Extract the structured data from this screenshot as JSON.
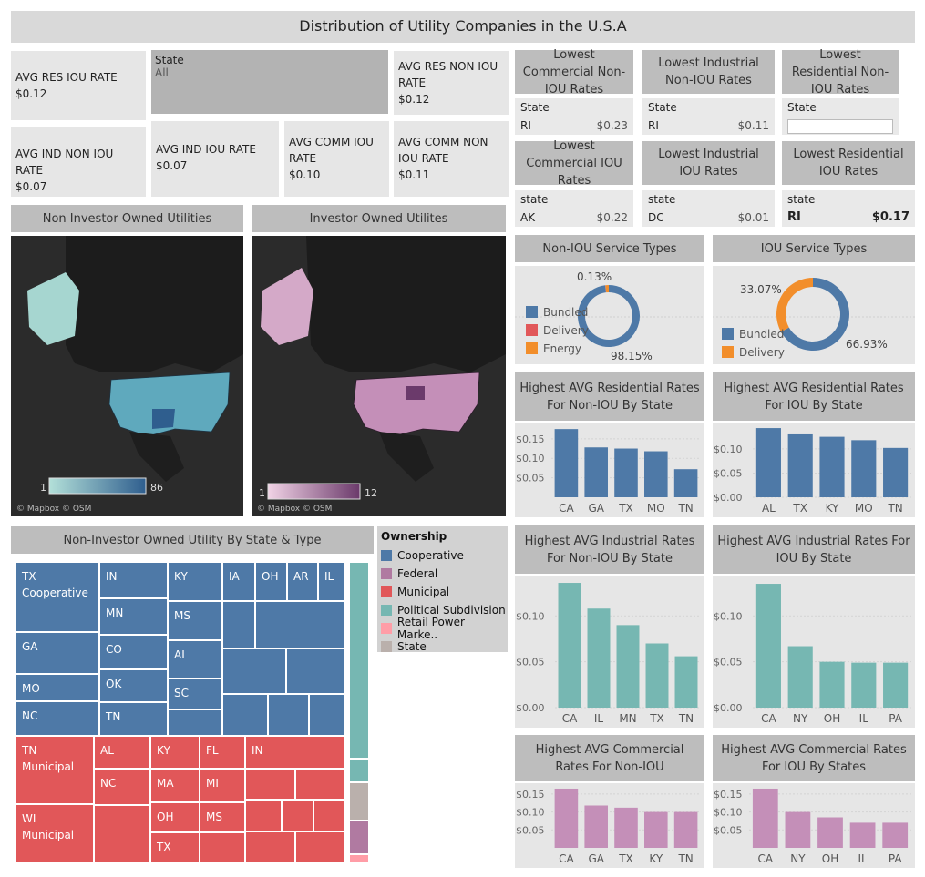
{
  "title": "Distribution of Utility Companies in the U.S.A",
  "kpis": {
    "res_iou": {
      "label": "AVG RES IOU RATE",
      "value": "$0.12"
    },
    "ind_non_iou": {
      "label": "AVG IND NON IOU RATE",
      "value": "$0.07"
    },
    "ind_iou": {
      "label": "AVG IND IOU RATE",
      "value": "$0.07"
    },
    "comm_iou": {
      "label": "AVG COMM IOU RATE",
      "value": "$0.10"
    },
    "res_non_iou": {
      "label": "AVG RES NON IOU RATE",
      "value": "$0.12"
    },
    "comm_non_iou": {
      "label": "AVG COMM NON IOU RATE",
      "value": "$0.11"
    }
  },
  "state_filter": {
    "label": "State",
    "value": "All"
  },
  "lowest": {
    "comm_non_iou": {
      "title": "Lowest Commercial Non-IOU Rates",
      "head": "State",
      "state": "RI",
      "value": "$0.23"
    },
    "ind_non_iou": {
      "title": "Lowest Industrial Non-IOU Rates",
      "head": "State",
      "state": "RI",
      "value": "$0.11"
    },
    "res_non_iou": {
      "title": "Lowest Residential Non-IOU Rates",
      "head": "State"
    },
    "comm_iou": {
      "title": "Lowest Commercial IOU Rates",
      "head": "state",
      "state": "AK",
      "value": "$0.22"
    },
    "ind_iou": {
      "title": "Lowest Industrial IOU Rates",
      "head": "state",
      "state": "DC",
      "value": "$0.01"
    },
    "res_iou": {
      "title": "Lowest Residential IOU Rates",
      "head": "state",
      "state": "RI",
      "value": "$0.17"
    }
  },
  "maps": {
    "non_iou": {
      "title": "Non Investor Owned Utilities",
      "min": "1",
      "max": "86",
      "credit": "© Mapbox © OSM",
      "color_low": "#b3e0d9",
      "color_high": "#2f5e8e"
    },
    "iou": {
      "title": "Investor Owned Utilites",
      "min": "1",
      "max": "12",
      "credit": "© Mapbox © OSM",
      "color_low": "#f1d3e6",
      "color_high": "#6b3a6b"
    }
  },
  "treemap": {
    "title": "Non-Investor Owned Utility By State & Type",
    "labels": {
      "tx_coop": "TX\nCooperative",
      "in_coop": "IN",
      "ky_coop": "KY",
      "ia": "IA",
      "oh_coop": "OH",
      "ar": "AR",
      "il": "IL",
      "mn": "MN",
      "ms_coop": "MS",
      "ga": "GA",
      "co": "CO",
      "al_coop": "AL",
      "mo": "MO",
      "ok": "OK",
      "sc": "SC",
      "nc_coop": "NC",
      "tn_coop": "TN",
      "tn_muni": "TN\nMunicipal",
      "al_muni": "AL",
      "ky_muni": "KY",
      "fl": "FL",
      "in_muni": "IN",
      "nc_muni": "NC",
      "ma": "MA",
      "mi": "MI",
      "oh_muni": "OH",
      "ms_muni": "MS",
      "wi_muni": "WI\nMunicipal",
      "tx_muni": "TX"
    }
  },
  "ownership_legend": {
    "title": "Ownership",
    "items": [
      {
        "label": "Cooperative",
        "color": "#4e79a7"
      },
      {
        "label": "Federal",
        "color": "#b07aa1"
      },
      {
        "label": "Municipal",
        "color": "#e15759"
      },
      {
        "label": "Political Subdivision",
        "color": "#76b7b2"
      },
      {
        "label": "Retail Power Marke..",
        "color": "#ff9da7"
      },
      {
        "label": "State",
        "color": "#bab0ac"
      }
    ]
  },
  "donuts": {
    "non_iou": {
      "title": "Non-IOU Service Types",
      "legend": [
        "Bundled",
        "Delivery",
        "Energy"
      ],
      "legend_colors": [
        "#4e79a7",
        "#e15759",
        "#f28e2b"
      ],
      "pct_small": "0.13%",
      "pct_big": "98.15%",
      "values": [
        98.15,
        0.13,
        1.72
      ]
    },
    "iou": {
      "title": "IOU Service Types",
      "legend": [
        "Bundled",
        "Delivery"
      ],
      "legend_colors": [
        "#4e79a7",
        "#f28e2b"
      ],
      "pct_small": "33.07%",
      "pct_big": "66.93%",
      "values": [
        66.93,
        33.07
      ]
    }
  },
  "chart_data": [
    {
      "id": "res_non_iou",
      "type": "bar",
      "title": "Highest AVG Residential Rates For Non-IOU By State",
      "categories": [
        "CA",
        "GA",
        "TX",
        "MO",
        "TN"
      ],
      "values": [
        0.175,
        0.128,
        0.125,
        0.118,
        0.072
      ],
      "ylim": [
        0,
        0.18
      ],
      "ticks": [
        0.05,
        0.1,
        0.15
      ],
      "tick_labels": [
        "$0.05",
        "$0.10",
        "$0.15"
      ],
      "color": "#4e79a7"
    },
    {
      "id": "res_iou",
      "type": "bar",
      "title": "Highest AVG Residential Rates For IOU By State",
      "categories": [
        "AL",
        "TX",
        "KY",
        "MO",
        "TN"
      ],
      "values": [
        0.143,
        0.13,
        0.125,
        0.118,
        0.102
      ],
      "ylim": [
        0,
        0.145
      ],
      "ticks": [
        0,
        0.05,
        0.1
      ],
      "tick_labels": [
        "$0.00",
        "$0.05",
        "$0.10"
      ],
      "color": "#4e79a7"
    },
    {
      "id": "ind_non_iou",
      "type": "bar",
      "title": "Highest AVG Industrial Rates For Non-IOU By State",
      "categories": [
        "CA",
        "IL",
        "MN",
        "TX",
        "TN"
      ],
      "values": [
        0.136,
        0.108,
        0.09,
        0.07,
        0.056
      ],
      "ylim": [
        0,
        0.14
      ],
      "ticks": [
        0,
        0.05,
        0.1
      ],
      "tick_labels": [
        "$0.00",
        "$0.05",
        "$0.10"
      ],
      "color": "#76b7b2"
    },
    {
      "id": "ind_iou",
      "type": "bar",
      "title": "Highest AVG Industrial Rates For IOU By State",
      "categories": [
        "CA",
        "NY",
        "OH",
        "IL",
        "PA"
      ],
      "values": [
        0.135,
        0.067,
        0.05,
        0.049,
        0.049
      ],
      "ylim": [
        0,
        0.14
      ],
      "ticks": [
        0,
        0.05,
        0.1
      ],
      "tick_labels": [
        "$0.00",
        "$0.05",
        "$0.10"
      ],
      "color": "#76b7b2"
    },
    {
      "id": "comm_non_iou",
      "type": "bar",
      "title": "Highest AVG Commercial Rates For Non-IOU",
      "categories": [
        "CA",
        "GA",
        "TX",
        "KY",
        "TN"
      ],
      "values": [
        0.165,
        0.118,
        0.112,
        0.1,
        0.1
      ],
      "ylim": [
        0,
        0.17
      ],
      "ticks": [
        0.05,
        0.1,
        0.15
      ],
      "tick_labels": [
        "$0.05",
        "$0.10",
        "$0.15"
      ],
      "color": "#c48fb8"
    },
    {
      "id": "comm_iou",
      "type": "bar",
      "title": "Highest AVG Commercial Rates For IOU By States",
      "categories": [
        "CA",
        "NY",
        "OH",
        "IL",
        "PA"
      ],
      "values": [
        0.165,
        0.1,
        0.085,
        0.07,
        0.07
      ],
      "ylim": [
        0,
        0.17
      ],
      "ticks": [
        0.05,
        0.1,
        0.15
      ],
      "tick_labels": [
        "$0.05",
        "$0.10",
        "$0.15"
      ],
      "color": "#c48fb8"
    }
  ]
}
